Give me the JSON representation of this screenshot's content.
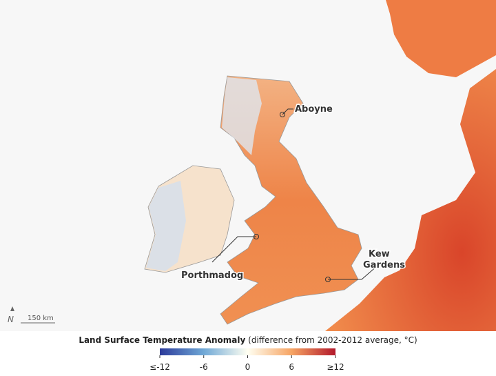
{
  "map": {
    "places": [
      {
        "lines": [
          "Aboyne"
        ]
      },
      {
        "lines": [
          "Porthmadog"
        ]
      },
      {
        "lines": [
          "Kew",
          "Gardens"
        ]
      }
    ],
    "scale_bar": "150 km"
  },
  "legend": {
    "title": "Land Surface Temperature Anomaly",
    "subtitle": "(difference from 2002-2012 average, °C)",
    "range": [
      -12,
      12
    ],
    "ticks": [
      {
        "value": -12,
        "label": "≤-12"
      },
      -6,
      0,
      6,
      {
        "value": 12,
        "label": "≥12"
      }
    ]
  }
}
